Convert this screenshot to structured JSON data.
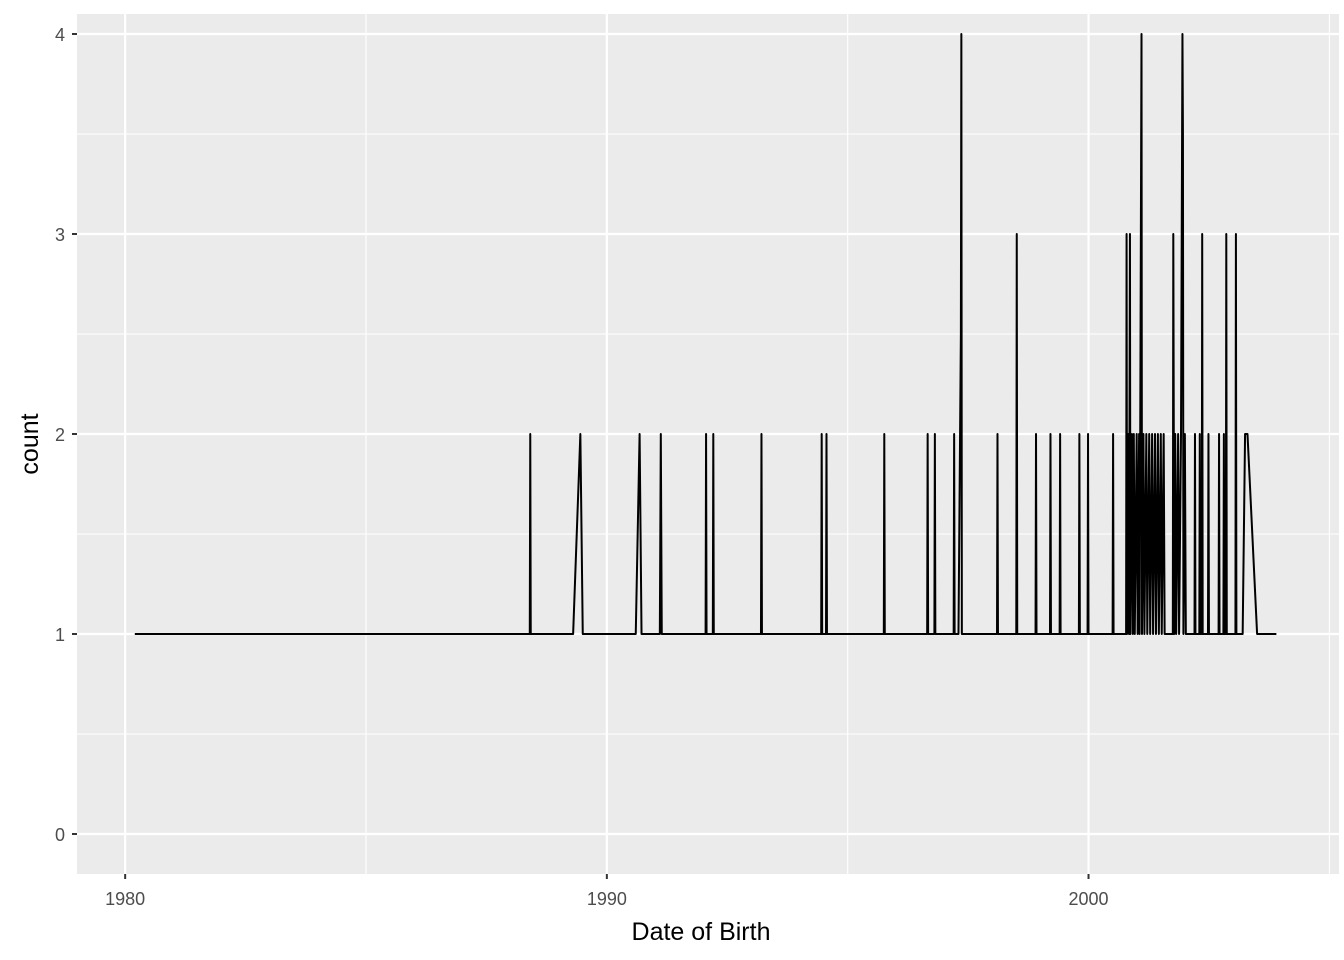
{
  "chart_data": {
    "type": "line",
    "title": "",
    "xlabel": "Date of Birth",
    "ylabel": "count",
    "x_scale": "date",
    "xlim": [
      1979.0,
      2005.2
    ],
    "ylim": [
      -0.2,
      4.1
    ],
    "x_ticks": [
      1980,
      1990,
      2000
    ],
    "y_ticks": [
      0,
      1,
      2,
      3,
      4
    ],
    "grid": true,
    "legend": "none",
    "colors": {
      "panel": "#EBEBEB",
      "grid": "#FFFFFF",
      "line": "#000000"
    },
    "series": [
      {
        "points": [
          [
            1980.2,
            1
          ],
          [
            1988.4,
            1
          ],
          [
            1988.41,
            2
          ],
          [
            1988.42,
            1
          ],
          [
            1989.3,
            1
          ],
          [
            1989.45,
            2
          ],
          [
            1989.5,
            1
          ],
          [
            1990.6,
            1
          ],
          [
            1990.68,
            2
          ],
          [
            1990.72,
            1
          ],
          [
            1991.1,
            1
          ],
          [
            1991.12,
            2
          ],
          [
            1991.14,
            1
          ],
          [
            1992.05,
            1
          ],
          [
            1992.06,
            2
          ],
          [
            1992.07,
            1
          ],
          [
            1992.2,
            1
          ],
          [
            1992.21,
            2
          ],
          [
            1992.22,
            1
          ],
          [
            1993.2,
            1
          ],
          [
            1993.21,
            2
          ],
          [
            1993.22,
            1
          ],
          [
            1994.45,
            1
          ],
          [
            1994.46,
            2
          ],
          [
            1994.47,
            1
          ],
          [
            1994.55,
            1
          ],
          [
            1994.56,
            2
          ],
          [
            1994.57,
            1
          ],
          [
            1995.75,
            1
          ],
          [
            1995.76,
            2
          ],
          [
            1995.77,
            1
          ],
          [
            1996.65,
            1
          ],
          [
            1996.66,
            2
          ],
          [
            1996.67,
            1
          ],
          [
            1996.8,
            1
          ],
          [
            1996.81,
            2
          ],
          [
            1996.82,
            1
          ],
          [
            1997.2,
            1
          ],
          [
            1997.21,
            2
          ],
          [
            1997.22,
            1
          ],
          [
            1997.3,
            1
          ],
          [
            1997.35,
            2.5
          ],
          [
            1997.36,
            4
          ],
          [
            1997.37,
            1
          ],
          [
            1998.1,
            1
          ],
          [
            1998.11,
            2
          ],
          [
            1998.12,
            1
          ],
          [
            1998.5,
            1
          ],
          [
            1998.51,
            3
          ],
          [
            1998.52,
            1
          ],
          [
            1998.9,
            1
          ],
          [
            1998.91,
            2
          ],
          [
            1998.92,
            1
          ],
          [
            1999.2,
            1
          ],
          [
            1999.21,
            2
          ],
          [
            1999.22,
            1
          ],
          [
            1999.4,
            1
          ],
          [
            1999.41,
            2
          ],
          [
            1999.42,
            1
          ],
          [
            1999.8,
            1
          ],
          [
            1999.81,
            2
          ],
          [
            1999.82,
            1
          ],
          [
            1999.98,
            1
          ],
          [
            1999.99,
            2
          ],
          [
            2000.0,
            1
          ],
          [
            2000.5,
            1
          ],
          [
            2000.51,
            2
          ],
          [
            2000.52,
            1
          ],
          [
            2000.78,
            1
          ],
          [
            2000.79,
            3
          ],
          [
            2000.8,
            1
          ],
          [
            2000.82,
            2
          ],
          [
            2000.84,
            1
          ],
          [
            2000.86,
            3
          ],
          [
            2000.87,
            1
          ],
          [
            2000.9,
            2
          ],
          [
            2000.92,
            1
          ],
          [
            2000.94,
            2
          ],
          [
            2000.96,
            1
          ],
          [
            2001.0,
            2
          ],
          [
            2001.02,
            1
          ],
          [
            2001.05,
            2
          ],
          [
            2001.06,
            1
          ],
          [
            2001.1,
            4
          ],
          [
            2001.11,
            1
          ],
          [
            2001.14,
            2
          ],
          [
            2001.16,
            1
          ],
          [
            2001.2,
            2
          ],
          [
            2001.22,
            1
          ],
          [
            2001.26,
            2
          ],
          [
            2001.28,
            1
          ],
          [
            2001.32,
            2
          ],
          [
            2001.34,
            1
          ],
          [
            2001.38,
            2
          ],
          [
            2001.4,
            1
          ],
          [
            2001.44,
            2
          ],
          [
            2001.46,
            1
          ],
          [
            2001.5,
            2
          ],
          [
            2001.52,
            1
          ],
          [
            2001.56,
            2
          ],
          [
            2001.58,
            1
          ],
          [
            2001.75,
            1
          ],
          [
            2001.76,
            3
          ],
          [
            2001.78,
            1
          ],
          [
            2001.8,
            2
          ],
          [
            2001.82,
            1
          ],
          [
            2001.86,
            2
          ],
          [
            2001.88,
            1
          ],
          [
            2001.92,
            2
          ],
          [
            2001.95,
            4
          ],
          [
            2001.96,
            3.5
          ],
          [
            2001.97,
            1
          ],
          [
            2002.0,
            2
          ],
          [
            2002.02,
            1
          ],
          [
            2002.2,
            1
          ],
          [
            2002.21,
            2
          ],
          [
            2002.22,
            1
          ],
          [
            2002.3,
            1
          ],
          [
            2002.31,
            2
          ],
          [
            2002.32,
            1
          ],
          [
            2002.35,
            1
          ],
          [
            2002.36,
            3
          ],
          [
            2002.37,
            1
          ],
          [
            2002.48,
            1
          ],
          [
            2002.49,
            2
          ],
          [
            2002.5,
            1
          ],
          [
            2002.7,
            1
          ],
          [
            2002.71,
            2
          ],
          [
            2002.72,
            1
          ],
          [
            2002.8,
            1
          ],
          [
            2002.81,
            2
          ],
          [
            2002.82,
            1
          ],
          [
            2002.85,
            1
          ],
          [
            2002.86,
            3
          ],
          [
            2002.87,
            1
          ],
          [
            2003.05,
            1
          ],
          [
            2003.06,
            3
          ],
          [
            2003.07,
            1
          ],
          [
            2003.2,
            1
          ],
          [
            2003.25,
            2
          ],
          [
            2003.3,
            2
          ],
          [
            2003.5,
            1
          ],
          [
            2003.9,
            1
          ]
        ]
      }
    ]
  }
}
